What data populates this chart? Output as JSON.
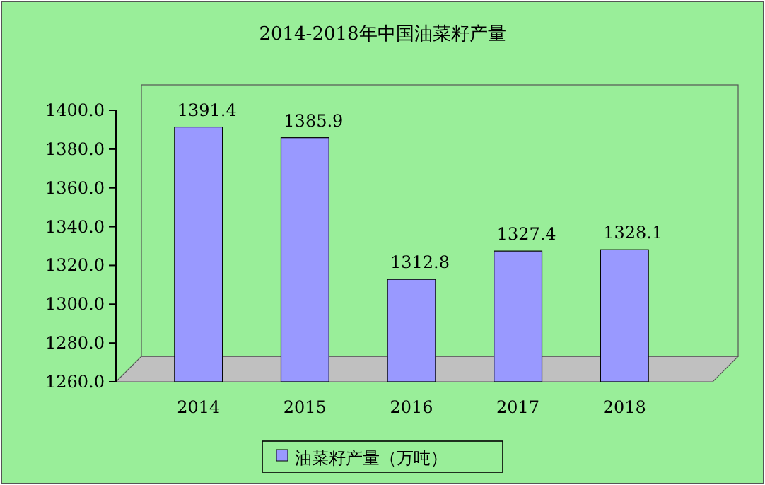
{
  "chart_data": {
    "type": "bar",
    "title": "2014-2018年中国油菜籽产量",
    "categories": [
      "2014",
      "2015",
      "2016",
      "2017",
      "2018"
    ],
    "series": [
      {
        "name": "油菜籽产量（万吨）",
        "color": "#9999ff",
        "values": [
          1391.4,
          1385.9,
          1312.8,
          1327.4,
          1328.1
        ]
      }
    ],
    "ylim": [
      1260,
      1400
    ],
    "yticks": [
      {
        "value": 1260,
        "label": "1260.0"
      },
      {
        "value": 1280,
        "label": "1280.0"
      },
      {
        "value": 1300,
        "label": "1300.0"
      },
      {
        "value": 1320,
        "label": "1320.0"
      },
      {
        "value": 1340,
        "label": "1340.0"
      },
      {
        "value": 1360,
        "label": "1360.0"
      },
      {
        "value": 1380,
        "label": "1380.0"
      },
      {
        "value": 1400,
        "label": "1400.0"
      }
    ],
    "data_labels": true,
    "legend": "bottom"
  }
}
